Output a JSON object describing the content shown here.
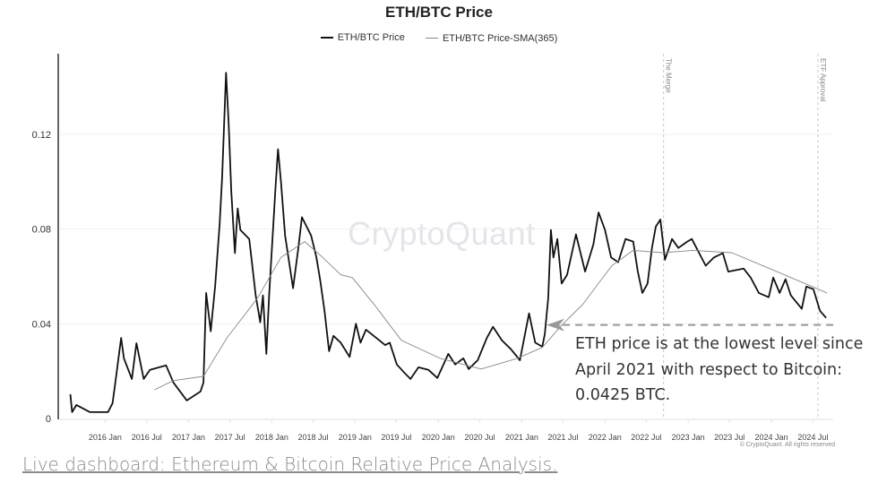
{
  "chart_data": {
    "type": "line",
    "title": "ETH/BTC Price",
    "xlabel": "",
    "ylabel": "",
    "xlim": [
      "2015-06-13",
      "2024-09-28"
    ],
    "ylim": [
      0,
      0.154
    ],
    "grid": true,
    "legend_placement": "top",
    "y_ticks": [
      {
        "value": 0,
        "label": "0"
      },
      {
        "value": 0.04,
        "label": "0.04"
      },
      {
        "value": 0.08,
        "label": "0.08"
      },
      {
        "value": 0.12,
        "label": "0.12"
      }
    ],
    "x_ticks": [
      {
        "date": "2016-01-01",
        "label": "2016 Jan"
      },
      {
        "date": "2016-07-01",
        "label": "2016 Jul"
      },
      {
        "date": "2017-01-01",
        "label": "2017 Jan"
      },
      {
        "date": "2017-07-01",
        "label": "2017 Jul"
      },
      {
        "date": "2018-01-01",
        "label": "2018 Jan"
      },
      {
        "date": "2018-07-01",
        "label": "2018 Jul"
      },
      {
        "date": "2019-01-01",
        "label": "2019 Jan"
      },
      {
        "date": "2019-07-01",
        "label": "2019 Jul"
      },
      {
        "date": "2020-01-01",
        "label": "2020 Jan"
      },
      {
        "date": "2020-07-01",
        "label": "2020 Jul"
      },
      {
        "date": "2021-01-01",
        "label": "2021 Jan"
      },
      {
        "date": "2021-07-01",
        "label": "2021 Jul"
      },
      {
        "date": "2022-01-01",
        "label": "2022 Jan"
      },
      {
        "date": "2022-07-01",
        "label": "2022 Jul"
      },
      {
        "date": "2023-01-01",
        "label": "2023 Jan"
      },
      {
        "date": "2023-07-01",
        "label": "2023 Jul"
      },
      {
        "date": "2024-01-01",
        "label": "2024 Jan"
      },
      {
        "date": "2024-07-01",
        "label": "2024 Jul"
      }
    ],
    "series": [
      {
        "name": "ETH/BTC Price",
        "color": "#111111",
        "points": [
          [
            "2015-08-01",
            0.0102
          ],
          [
            "2015-08-09",
            0.0027
          ],
          [
            "2015-08-28",
            0.0057
          ],
          [
            "2015-10-26",
            0.0027
          ],
          [
            "2016-01-13",
            0.0027
          ],
          [
            "2016-02-02",
            0.0064
          ],
          [
            "2016-02-14",
            0.0148
          ],
          [
            "2016-03-11",
            0.034
          ],
          [
            "2016-03-23",
            0.0254
          ],
          [
            "2016-04-27",
            0.0167
          ],
          [
            "2016-05-17",
            0.0318
          ],
          [
            "2016-06-18",
            0.0167
          ],
          [
            "2016-07-15",
            0.0205
          ],
          [
            "2016-09-24",
            0.0224
          ],
          [
            "2016-10-26",
            0.0152
          ],
          [
            "2016-12-24",
            0.0076
          ],
          [
            "2017-02-22",
            0.0114
          ],
          [
            "2017-03-07",
            0.0152
          ],
          [
            "2017-03-19",
            0.053
          ],
          [
            "2017-04-08",
            0.0368
          ],
          [
            "2017-04-27",
            0.0557
          ],
          [
            "2017-05-17",
            0.0823
          ],
          [
            "2017-05-28",
            0.1024
          ],
          [
            "2017-06-14",
            0.146
          ],
          [
            "2017-06-26",
            0.124
          ],
          [
            "2017-07-07",
            0.0963
          ],
          [
            "2017-07-23",
            0.0698
          ],
          [
            "2017-08-04",
            0.0887
          ],
          [
            "2017-08-16",
            0.0796
          ],
          [
            "2017-09-24",
            0.0758
          ],
          [
            "2017-10-22",
            0.052
          ],
          [
            "2017-11-11",
            0.0406
          ],
          [
            "2017-11-23",
            0.052
          ],
          [
            "2017-12-08",
            0.0273
          ],
          [
            "2017-12-20",
            0.052
          ],
          [
            "2018-01-17",
            0.0974
          ],
          [
            "2018-01-28",
            0.1137
          ],
          [
            "2018-02-10",
            0.1
          ],
          [
            "2018-02-28",
            0.0773
          ],
          [
            "2018-04-04",
            0.055
          ],
          [
            "2018-04-27",
            0.072
          ],
          [
            "2018-05-13",
            0.085
          ],
          [
            "2018-06-22",
            0.0773
          ],
          [
            "2018-07-15",
            0.0682
          ],
          [
            "2018-08-01",
            0.0584
          ],
          [
            "2018-08-20",
            0.0455
          ],
          [
            "2018-09-09",
            0.0284
          ],
          [
            "2018-09-28",
            0.0349
          ],
          [
            "2018-10-30",
            0.032
          ],
          [
            "2018-12-08",
            0.026
          ],
          [
            "2019-01-05",
            0.04
          ],
          [
            "2019-01-25",
            0.032
          ],
          [
            "2019-02-18",
            0.0375
          ],
          [
            "2019-04-04",
            0.034
          ],
          [
            "2019-05-13",
            0.031
          ],
          [
            "2019-06-02",
            0.032
          ],
          [
            "2019-07-03",
            0.0228
          ],
          [
            "2019-08-08",
            0.019
          ],
          [
            "2019-09-01",
            0.0167
          ],
          [
            "2019-10-06",
            0.0216
          ],
          [
            "2019-11-19",
            0.0205
          ],
          [
            "2019-12-28",
            0.0171
          ],
          [
            "2020-02-14",
            0.0273
          ],
          [
            "2020-03-15",
            0.0228
          ],
          [
            "2020-04-20",
            0.0254
          ],
          [
            "2020-05-13",
            0.0209
          ],
          [
            "2020-06-22",
            0.0246
          ],
          [
            "2020-08-01",
            0.034
          ],
          [
            "2020-08-28",
            0.0387
          ],
          [
            "2020-10-06",
            0.033
          ],
          [
            "2020-11-15",
            0.0292
          ],
          [
            "2020-12-24",
            0.0246
          ],
          [
            "2021-02-02",
            0.0444
          ],
          [
            "2021-03-01",
            0.032
          ],
          [
            "2021-04-01",
            0.0303
          ],
          [
            "2021-04-12",
            0.0356
          ],
          [
            "2021-04-27",
            0.0508
          ],
          [
            "2021-05-09",
            0.0796
          ],
          [
            "2021-05-20",
            0.068
          ],
          [
            "2021-06-06",
            0.0758
          ],
          [
            "2021-06-25",
            0.057
          ],
          [
            "2021-07-19",
            0.0607
          ],
          [
            "2021-08-27",
            0.0777
          ],
          [
            "2021-10-06",
            0.062
          ],
          [
            "2021-11-11",
            0.0735
          ],
          [
            "2021-12-04",
            0.087
          ],
          [
            "2022-01-01",
            0.0796
          ],
          [
            "2022-01-28",
            0.068
          ],
          [
            "2022-02-28",
            0.066
          ],
          [
            "2022-04-01",
            0.0758
          ],
          [
            "2022-05-05",
            0.0747
          ],
          [
            "2022-05-25",
            0.062
          ],
          [
            "2022-06-14",
            0.053
          ],
          [
            "2022-07-07",
            0.057
          ],
          [
            "2022-07-26",
            0.072
          ],
          [
            "2022-08-12",
            0.081
          ],
          [
            "2022-09-01",
            0.084
          ],
          [
            "2022-09-21",
            0.067
          ],
          [
            "2022-10-22",
            0.0758
          ],
          [
            "2022-11-19",
            0.072
          ],
          [
            "2022-12-28",
            0.0747
          ],
          [
            "2023-01-17",
            0.0758
          ],
          [
            "2023-02-18",
            0.0698
          ],
          [
            "2023-03-19",
            0.0645
          ],
          [
            "2023-04-24",
            0.068
          ],
          [
            "2023-06-02",
            0.0698
          ],
          [
            "2023-06-26",
            0.062
          ],
          [
            "2023-09-01",
            0.0633
          ],
          [
            "2023-10-02",
            0.0595
          ],
          [
            "2023-11-07",
            0.053
          ],
          [
            "2023-12-20",
            0.0512
          ],
          [
            "2024-01-09",
            0.0595
          ],
          [
            "2024-02-06",
            0.053
          ],
          [
            "2024-03-03",
            0.0588
          ],
          [
            "2024-03-26",
            0.052
          ],
          [
            "2024-05-13",
            0.0463
          ],
          [
            "2024-06-02",
            0.0557
          ],
          [
            "2024-07-03",
            0.0546
          ],
          [
            "2024-08-01",
            0.0455
          ],
          [
            "2024-08-28",
            0.0425
          ]
        ]
      },
      {
        "name": "ETH/BTC Price-SMA(365)",
        "color": "#888888",
        "points": [
          [
            "2016-08-04",
            0.0121
          ],
          [
            "2016-10-26",
            0.016
          ],
          [
            "2017-03-07",
            0.0178
          ],
          [
            "2017-06-18",
            0.034
          ],
          [
            "2017-10-30",
            0.0508
          ],
          [
            "2018-02-10",
            0.068
          ],
          [
            "2018-05-25",
            0.0747
          ],
          [
            "2018-08-12",
            0.068
          ],
          [
            "2018-10-30",
            0.0607
          ],
          [
            "2018-12-20",
            0.0595
          ],
          [
            "2019-04-04",
            0.047
          ],
          [
            "2019-07-23",
            0.033
          ],
          [
            "2020-01-09",
            0.0254
          ],
          [
            "2020-07-07",
            0.0209
          ],
          [
            "2020-12-12",
            0.0254
          ],
          [
            "2021-04-01",
            0.03
          ],
          [
            "2021-06-25",
            0.0394
          ],
          [
            "2021-09-24",
            0.048
          ],
          [
            "2022-01-31",
            0.0645
          ],
          [
            "2022-05-05",
            0.071
          ],
          [
            "2022-09-13",
            0.07
          ],
          [
            "2023-01-21",
            0.071
          ],
          [
            "2023-07-11",
            0.07
          ],
          [
            "2024-01-25",
            0.062
          ],
          [
            "2024-09-01",
            0.053
          ]
        ]
      }
    ],
    "event_lines": [
      {
        "date": "2022-09-15",
        "label": "The Merge"
      },
      {
        "date": "2024-07-23",
        "label": "ETF Approval"
      }
    ],
    "reference_line": {
      "value": 0.0425,
      "start_date": "2021-04-20"
    },
    "annotation": {
      "lines": [
        "ETH price is at the lowest level since",
        "April 2021 with respect to Bitcoin:",
        "0.0425 BTC."
      ]
    }
  },
  "legend": {
    "items": [
      "ETH/BTC Price",
      "ETH/BTC Price-SMA(365)"
    ]
  },
  "watermark": "CryptoQuant",
  "copyright": "© CryptoQuant. All rights reserved",
  "link": "Live dashboard: Ethereum & Bitcoin Relative Price Analysis."
}
